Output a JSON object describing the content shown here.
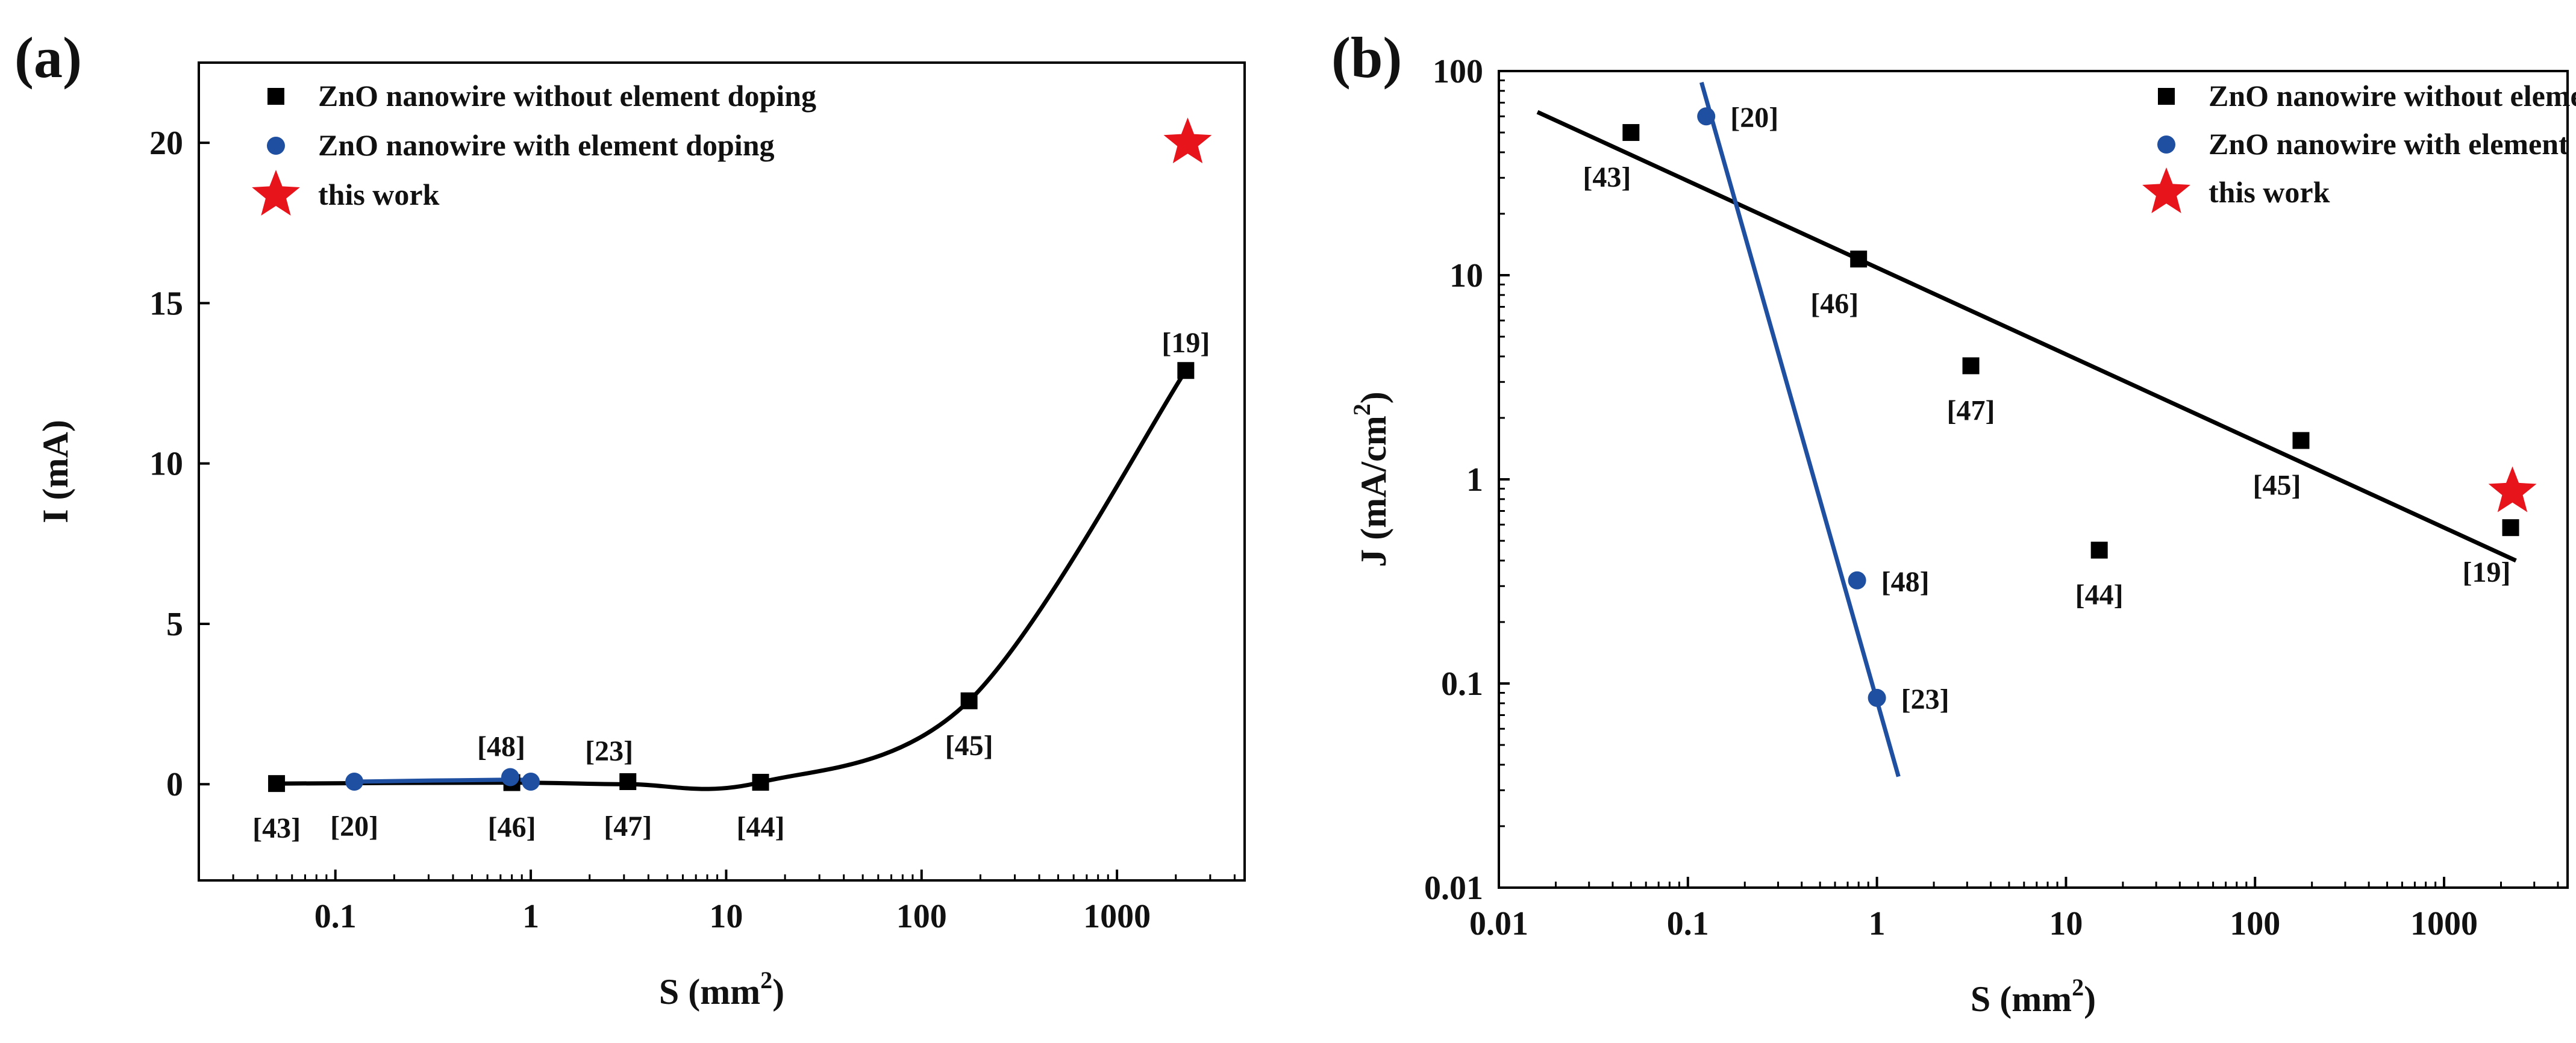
{
  "colors": {
    "undoped": "#000000",
    "doped": "#1f4fa0",
    "this_work": "#e8141c"
  },
  "chart_data": [
    {
      "panel_label": "(a)",
      "type": "scatter",
      "title": "",
      "xlabel": "S (mm",
      "xlabel_sup": "2",
      "xlabel_end": ")",
      "ylabel": "I (mA)",
      "xscale": "log",
      "xlim": [
        0.02,
        4500
      ],
      "ylim": [
        -3,
        22.5
      ],
      "xticks": [
        0.1,
        1,
        10,
        100,
        1000
      ],
      "xtick_labels": [
        "0.1",
        "1",
        "10",
        "100",
        "1000"
      ],
      "yticks": [
        0,
        5,
        10,
        15,
        20
      ],
      "ytick_labels": [
        "0",
        "5",
        "10",
        "15",
        "20"
      ],
      "legend_position": "top-left",
      "series": [
        {
          "name": "ZnO nanowire without element doping",
          "marker": "square",
          "color": "#000000",
          "x": [
            0.05,
            0.8,
            3.14,
            15,
            175,
            2250
          ],
          "y": [
            0.02,
            0.05,
            0.08,
            0.06,
            2.6,
            12.9
          ],
          "labels": [
            "[43]",
            "[46]",
            "[47]",
            "[44]",
            "[45]",
            "[19]"
          ],
          "label_pos": [
            "below",
            "below",
            "below",
            "below",
            "below",
            "above"
          ],
          "curve": {
            "x": [
              0.05,
              0.8,
              3.14,
              15,
              175,
              2250
            ],
            "y": [
              0.02,
              0.05,
              0.0,
              0.06,
              2.6,
              12.9
            ]
          }
        },
        {
          "name": "ZnO nanowire with element doping",
          "marker": "circle",
          "color": "#1f4fa0",
          "x": [
            0.125,
            0.785,
            1.0
          ],
          "y": [
            0.08,
            0.22,
            0.08
          ],
          "labels": [
            "[20]",
            "[48]",
            "[23]"
          ],
          "label_pos": [
            "below",
            "above-left",
            "above-right"
          ],
          "curve": {
            "x": [
              0.125,
              0.785,
              1.0
            ],
            "y": [
              0.08,
              0.14,
              0.09
            ]
          }
        },
        {
          "name": "this work",
          "marker": "star",
          "color": "#e8141c",
          "x": [
            2300
          ],
          "y": [
            20
          ],
          "labels": [
            ""
          ],
          "label_pos": [
            "none"
          ]
        }
      ]
    },
    {
      "panel_label": "(b)",
      "type": "scatter",
      "title": "",
      "xlabel": "S (mm",
      "xlabel_sup": "2",
      "xlabel_end": ")",
      "ylabel": "J (mA/cm",
      "ylabel_sup": "2",
      "ylabel_end": ")",
      "xscale": "log",
      "yscale": "log",
      "xlim": [
        0.01,
        4500
      ],
      "ylim": [
        0.01,
        100
      ],
      "xticks": [
        0.01,
        0.1,
        1,
        10,
        100,
        1000
      ],
      "xtick_labels": [
        "0.01",
        "0.1",
        "1",
        "10",
        "100",
        "1000"
      ],
      "yticks": [
        0.01,
        0.1,
        1,
        10,
        100
      ],
      "ytick_labels": [
        "0.01",
        "0.1",
        "1",
        "10",
        "100"
      ],
      "legend_position": "top-right",
      "series": [
        {
          "name": "ZnO nanowire without element doping",
          "marker": "square",
          "color": "#000000",
          "x": [
            0.05,
            0.8,
            3.14,
            15,
            175,
            2250
          ],
          "y": [
            50,
            12,
            3.6,
            0.45,
            1.55,
            0.58
          ],
          "labels": [
            "[43]",
            "[46]",
            "[47]",
            "[44]",
            "[45]",
            "[19]"
          ],
          "label_pos": [
            "below-left",
            "below-left",
            "below",
            "below",
            "below-left",
            "below-left"
          ],
          "fit_line": {
            "x": [
              0.016,
              2400
            ],
            "y": [
              63,
              0.4
            ]
          }
        },
        {
          "name": "ZnO nanowire with element doping",
          "marker": "circle",
          "color": "#1f4fa0",
          "x": [
            0.125,
            0.785,
            1.0
          ],
          "y": [
            60,
            0.32,
            0.085
          ],
          "labels": [
            "[20]",
            "[48]",
            "[23]"
          ],
          "label_pos": [
            "right",
            "right",
            "right"
          ],
          "fit_line": {
            "x": [
              0.118,
              1.3
            ],
            "y": [
              88,
              0.035
            ]
          }
        },
        {
          "name": "this work",
          "marker": "star",
          "color": "#e8141c",
          "x": [
            2300
          ],
          "y": [
            0.87
          ],
          "labels": [
            ""
          ],
          "label_pos": [
            "none"
          ]
        }
      ]
    }
  ]
}
